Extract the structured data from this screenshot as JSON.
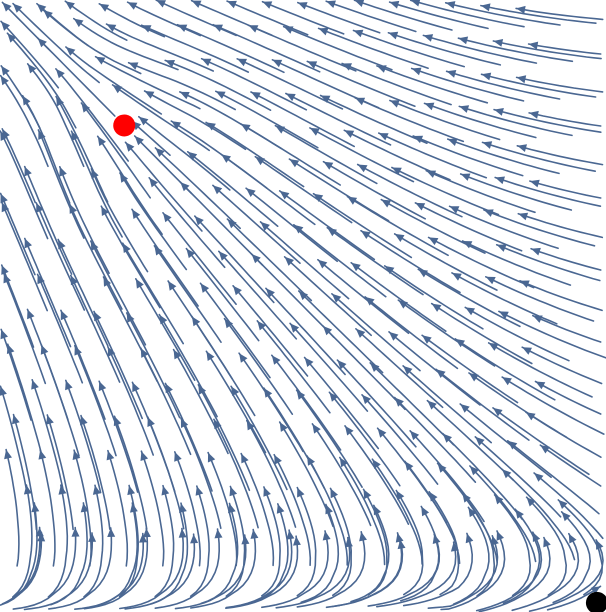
{
  "diagram": {
    "kind": "stream-plot",
    "stream_color": "#4a6792",
    "background": "#ffffff",
    "fixed_points": [
      {
        "name": "stable-node",
        "color": "#ff0000",
        "u": 0.205,
        "v": 0.795
      },
      {
        "name": "saddle-point",
        "color": "#000000",
        "u": 0.985,
        "v": 0.015
      }
    ],
    "axes_visible": false,
    "frame_visible": false
  }
}
